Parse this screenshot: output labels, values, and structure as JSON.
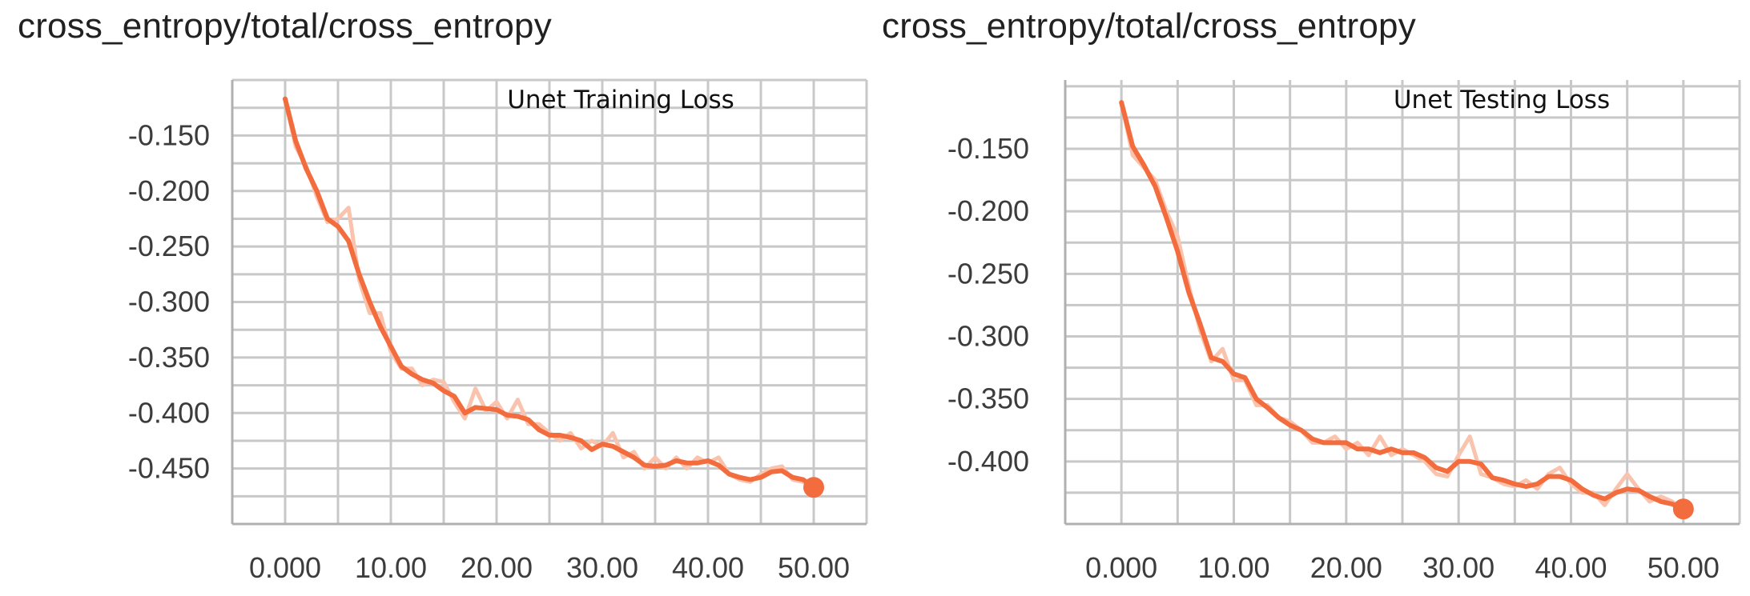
{
  "chart_data": [
    {
      "type": "line",
      "title": "cross_entropy/total/cross_entropy",
      "annotation": "Unet Training Loss",
      "xlabel": "",
      "ylabel": "",
      "x_ticks": [
        "0.000",
        "10.00",
        "20.00",
        "30.00",
        "40.00",
        "50.00"
      ],
      "y_ticks": [
        "-0.150",
        "-0.200",
        "-0.250",
        "-0.300",
        "-0.350",
        "-0.400",
        "-0.450"
      ],
      "xlim": [
        -5,
        55
      ],
      "ylim": [
        -0.5,
        -0.1
      ],
      "grid": true,
      "color": "#f36c3d",
      "raw_color": "#f9c3ae",
      "series": [
        {
          "x": [
            0,
            1,
            2,
            3,
            4,
            5,
            6,
            7,
            8,
            9,
            10,
            11,
            12,
            13,
            14,
            15,
            16,
            17,
            18,
            19,
            20,
            21,
            22,
            23,
            24,
            25,
            26,
            27,
            28,
            29,
            30,
            31,
            32,
            33,
            34,
            35,
            36,
            37,
            38,
            39,
            40,
            41,
            42,
            43,
            44,
            45,
            46,
            47,
            48,
            49,
            50
          ],
          "values": [
            -0.117,
            -0.155,
            -0.18,
            -0.2,
            -0.225,
            -0.232,
            -0.245,
            -0.275,
            -0.3,
            -0.322,
            -0.34,
            -0.358,
            -0.365,
            -0.37,
            -0.373,
            -0.38,
            -0.385,
            -0.4,
            -0.395,
            -0.396,
            -0.397,
            -0.402,
            -0.403,
            -0.406,
            -0.415,
            -0.42,
            -0.42,
            -0.422,
            -0.425,
            -0.433,
            -0.428,
            -0.43,
            -0.435,
            -0.44,
            -0.447,
            -0.448,
            -0.447,
            -0.443,
            -0.445,
            -0.445,
            -0.443,
            -0.447,
            -0.455,
            -0.458,
            -0.46,
            -0.458,
            -0.453,
            -0.452,
            -0.458,
            -0.46,
            -0.467
          ]
        },
        {
          "x": [
            0,
            1,
            2,
            3,
            4,
            5,
            6,
            7,
            8,
            9,
            10,
            11,
            12,
            13,
            14,
            15,
            16,
            17,
            18,
            19,
            20,
            21,
            22,
            23,
            24,
            25,
            26,
            27,
            28,
            29,
            30,
            31,
            32,
            33,
            34,
            35,
            36,
            37,
            38,
            39,
            40,
            41,
            42,
            43,
            44,
            45,
            46,
            47,
            48,
            49,
            50
          ],
          "values": [
            -0.117,
            -0.16,
            -0.178,
            -0.205,
            -0.228,
            -0.225,
            -0.215,
            -0.28,
            -0.31,
            -0.31,
            -0.345,
            -0.36,
            -0.36,
            -0.375,
            -0.37,
            -0.372,
            -0.39,
            -0.405,
            -0.378,
            -0.398,
            -0.39,
            -0.405,
            -0.388,
            -0.41,
            -0.41,
            -0.418,
            -0.425,
            -0.418,
            -0.432,
            -0.425,
            -0.43,
            -0.418,
            -0.44,
            -0.435,
            -0.45,
            -0.44,
            -0.45,
            -0.44,
            -0.45,
            -0.44,
            -0.445,
            -0.44,
            -0.455,
            -0.46,
            -0.462,
            -0.455,
            -0.45,
            -0.448,
            -0.46,
            -0.462,
            -0.467
          ]
        }
      ]
    },
    {
      "type": "line",
      "title": "cross_entropy/total/cross_entropy",
      "annotation": "Unet Testing Loss",
      "xlabel": "",
      "ylabel": "",
      "x_ticks": [
        "0.000",
        "10.00",
        "20.00",
        "30.00",
        "40.00",
        "50.00"
      ],
      "y_ticks": [
        "-0.150",
        "-0.200",
        "-0.250",
        "-0.300",
        "-0.350",
        "-0.400"
      ],
      "xlim": [
        -5,
        55
      ],
      "ylim": [
        -0.45,
        -0.095
      ],
      "grid": true,
      "color": "#f36c3d",
      "raw_color": "#f9c3ae",
      "series": [
        {
          "x": [
            0,
            1,
            2,
            3,
            4,
            5,
            6,
            7,
            8,
            9,
            10,
            11,
            12,
            13,
            14,
            15,
            16,
            17,
            18,
            19,
            20,
            21,
            22,
            23,
            24,
            25,
            26,
            27,
            28,
            29,
            30,
            31,
            32,
            33,
            34,
            35,
            36,
            37,
            38,
            39,
            40,
            41,
            42,
            43,
            44,
            45,
            46,
            47,
            48,
            49,
            50
          ],
          "values": [
            -0.113,
            -0.148,
            -0.163,
            -0.18,
            -0.205,
            -0.232,
            -0.265,
            -0.29,
            -0.317,
            -0.32,
            -0.33,
            -0.333,
            -0.35,
            -0.357,
            -0.365,
            -0.371,
            -0.375,
            -0.382,
            -0.385,
            -0.385,
            -0.385,
            -0.39,
            -0.39,
            -0.393,
            -0.39,
            -0.393,
            -0.393,
            -0.397,
            -0.405,
            -0.408,
            -0.4,
            -0.4,
            -0.402,
            -0.413,
            -0.415,
            -0.418,
            -0.42,
            -0.418,
            -0.412,
            -0.412,
            -0.415,
            -0.422,
            -0.427,
            -0.43,
            -0.425,
            -0.422,
            -0.423,
            -0.428,
            -0.432,
            -0.434,
            -0.438
          ]
        },
        {
          "x": [
            0,
            1,
            2,
            3,
            4,
            5,
            6,
            7,
            8,
            9,
            10,
            11,
            12,
            13,
            14,
            15,
            16,
            17,
            18,
            19,
            20,
            21,
            22,
            23,
            24,
            25,
            26,
            27,
            28,
            29,
            30,
            31,
            32,
            33,
            34,
            35,
            36,
            37,
            38,
            39,
            40,
            41,
            42,
            43,
            44,
            45,
            46,
            47,
            48,
            49,
            50
          ],
          "values": [
            -0.113,
            -0.155,
            -0.165,
            -0.175,
            -0.2,
            -0.22,
            -0.26,
            -0.295,
            -0.32,
            -0.31,
            -0.335,
            -0.335,
            -0.355,
            -0.355,
            -0.365,
            -0.368,
            -0.375,
            -0.385,
            -0.385,
            -0.38,
            -0.39,
            -0.385,
            -0.395,
            -0.38,
            -0.395,
            -0.39,
            -0.395,
            -0.4,
            -0.41,
            -0.412,
            -0.395,
            -0.38,
            -0.41,
            -0.413,
            -0.418,
            -0.42,
            -0.415,
            -0.422,
            -0.41,
            -0.405,
            -0.418,
            -0.425,
            -0.425,
            -0.435,
            -0.422,
            -0.41,
            -0.422,
            -0.432,
            -0.428,
            -0.432,
            -0.438
          ]
        }
      ]
    }
  ]
}
